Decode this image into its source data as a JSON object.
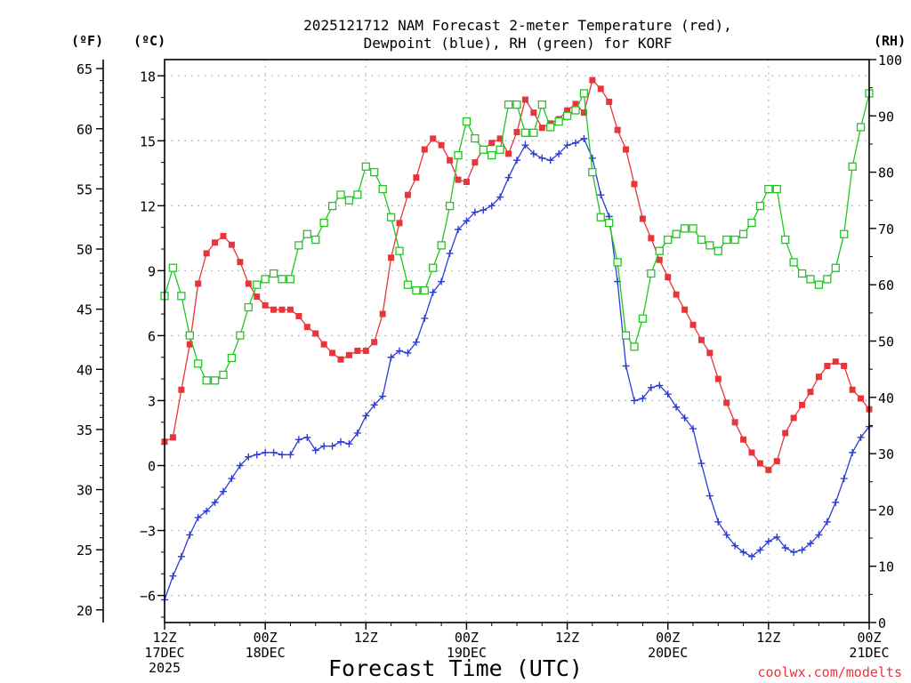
{
  "chart_data": {
    "type": "line",
    "title_lines": [
      "2025121712 NAM Forecast 2-meter Temperature (red),",
      "Dewpoint (blue), RH (green) for KORF"
    ],
    "xlabel": "Forecast Time (UTC)",
    "credit": "coolwx.com/modelts",
    "units": {
      "fahrenheit": "(ºF)",
      "celsius": "(ºC)",
      "rh": "(RH)"
    },
    "x_range_hours": [
      0,
      84
    ],
    "x_ticks": [
      {
        "hour": 0,
        "lines": [
          "12Z",
          "17DEC",
          "2025"
        ]
      },
      {
        "hour": 12,
        "lines": [
          "00Z",
          "18DEC"
        ]
      },
      {
        "hour": 24,
        "lines": [
          "12Z"
        ]
      },
      {
        "hour": 36,
        "lines": [
          "00Z",
          "19DEC"
        ]
      },
      {
        "hour": 48,
        "lines": [
          "12Z"
        ]
      },
      {
        "hour": 60,
        "lines": [
          "00Z",
          "20DEC"
        ]
      },
      {
        "hour": 72,
        "lines": [
          "12Z"
        ]
      },
      {
        "hour": 84,
        "lines": [
          "00Z",
          "21DEC"
        ]
      }
    ],
    "celsius_axis": {
      "range": [
        -7.25,
        18.75
      ],
      "ticks": [
        "−6",
        "−3",
        "0",
        "3",
        "6",
        "9",
        "12",
        "15",
        "18"
      ],
      "tick_values": [
        -6,
        -3,
        0,
        3,
        6,
        9,
        12,
        15,
        18
      ]
    },
    "fahrenheit_axis": {
      "ticks": [
        "20",
        "25",
        "30",
        "35",
        "40",
        "45",
        "50",
        "55",
        "60",
        "65"
      ],
      "tick_values": [
        20,
        25,
        30,
        35,
        40,
        45,
        50,
        55,
        60,
        65
      ]
    },
    "rh_axis": {
      "range": [
        0,
        100
      ],
      "ticks": [
        "0",
        "10",
        "20",
        "30",
        "40",
        "50",
        "60",
        "70",
        "80",
        "90",
        "100"
      ],
      "tick_values": [
        0,
        10,
        20,
        30,
        40,
        50,
        60,
        70,
        80,
        90,
        100
      ]
    },
    "series": [
      {
        "name": "Temperature",
        "unit": "C",
        "color": "#e8353a",
        "marker": "square-filled",
        "values": [
          1.1,
          1.3,
          3.5,
          5.6,
          8.4,
          9.8,
          10.3,
          10.6,
          10.2,
          9.4,
          8.4,
          7.8,
          7.4,
          7.2,
          7.2,
          7.2,
          6.9,
          6.4,
          6.1,
          5.6,
          5.2,
          4.9,
          5.1,
          5.3,
          5.3,
          5.7,
          7.0,
          9.6,
          11.2,
          12.5,
          13.3,
          14.6,
          15.1,
          14.8,
          14.1,
          13.2,
          13.1,
          14.0,
          14.6,
          14.9,
          15.1,
          14.4,
          15.4,
          16.9,
          16.3,
          15.6,
          15.8,
          16.0,
          16.4,
          16.7,
          16.3,
          17.8,
          17.4,
          16.8,
          15.5,
          14.6,
          13.0,
          11.4,
          10.5,
          9.5,
          8.7,
          7.9,
          7.2,
          6.5,
          5.8,
          5.2,
          4.0,
          2.9,
          2.0,
          1.2,
          0.6,
          0.1,
          -0.2,
          0.2,
          1.5,
          2.2,
          2.8,
          3.4,
          4.1,
          4.6,
          4.8,
          4.6,
          3.5,
          3.1,
          2.6
        ]
      },
      {
        "name": "Dewpoint",
        "unit": "C",
        "color": "#2b3bd6",
        "marker": "plus",
        "values": [
          -6.2,
          -5.1,
          -4.2,
          -3.2,
          -2.4,
          -2.1,
          -1.7,
          -1.2,
          -0.6,
          0.0,
          0.4,
          0.5,
          0.6,
          0.6,
          0.5,
          0.5,
          1.2,
          1.3,
          0.7,
          0.9,
          0.9,
          1.1,
          1.0,
          1.5,
          2.3,
          2.8,
          3.2,
          5.0,
          5.3,
          5.2,
          5.7,
          6.8,
          8.0,
          8.5,
          9.8,
          10.9,
          11.3,
          11.7,
          11.8,
          12.0,
          12.4,
          13.3,
          14.1,
          14.8,
          14.4,
          14.2,
          14.1,
          14.4,
          14.8,
          14.9,
          15.1,
          14.2,
          12.5,
          11.5,
          8.5,
          4.6,
          3.0,
          3.1,
          3.6,
          3.7,
          3.3,
          2.7,
          2.2,
          1.7,
          0.1,
          -1.4,
          -2.6,
          -3.2,
          -3.7,
          -4.0,
          -4.2,
          -3.9,
          -3.5,
          -3.3,
          -3.8,
          -4.0,
          -3.9,
          -3.6,
          -3.2,
          -2.6,
          -1.7,
          -0.6,
          0.6,
          1.3,
          1.8
        ]
      },
      {
        "name": "RH",
        "unit": "%",
        "color": "#22c622",
        "marker": "square-open",
        "values": [
          58,
          63,
          58,
          51,
          46,
          43,
          43,
          44,
          47,
          51,
          56,
          60,
          61,
          62,
          61,
          61,
          67,
          69,
          68,
          71,
          74,
          76,
          75,
          76,
          81,
          80,
          77,
          72,
          66,
          60,
          59,
          59,
          63,
          67,
          74,
          83,
          89,
          86,
          84,
          83,
          84,
          92,
          92,
          87,
          87,
          92,
          88,
          89,
          90,
          91,
          94,
          80,
          72,
          71,
          64,
          51,
          49,
          54,
          62,
          66,
          68,
          69,
          70,
          70,
          68,
          67,
          66,
          68,
          68,
          69,
          71,
          74,
          77,
          77,
          68,
          64,
          62,
          61,
          60,
          61,
          63,
          69,
          81,
          88,
          94
        ]
      }
    ]
  }
}
